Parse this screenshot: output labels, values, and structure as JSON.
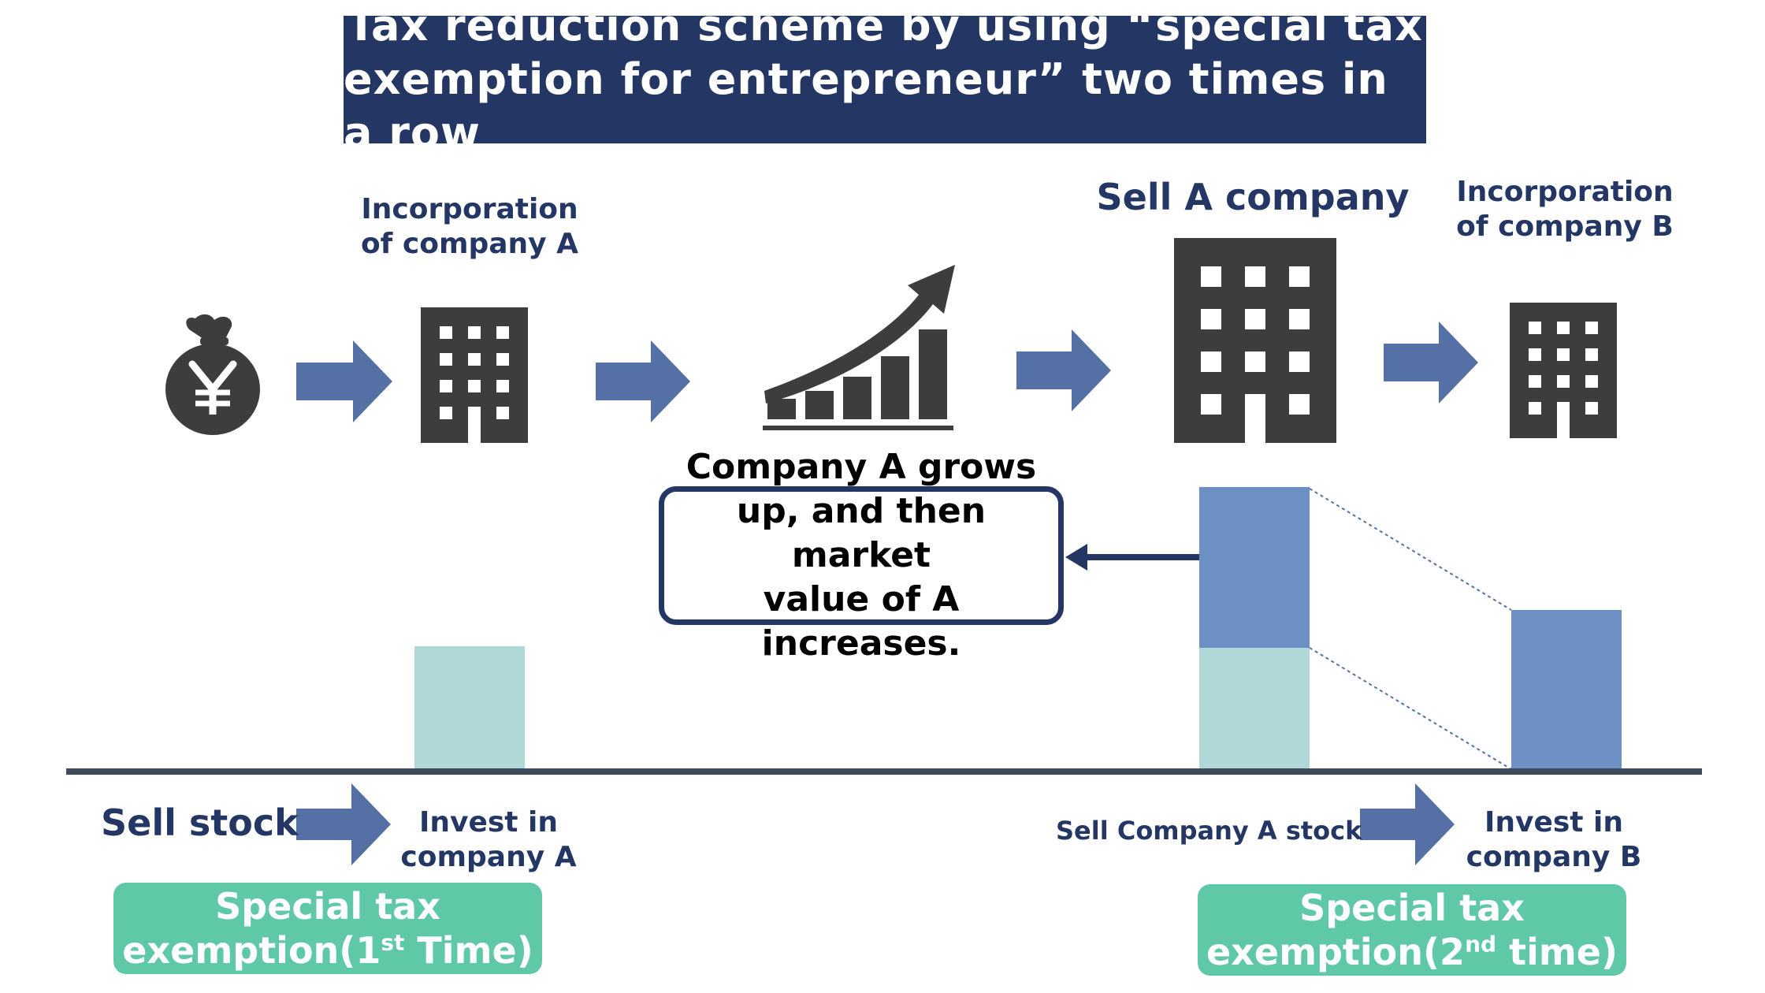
{
  "title": {
    "line1": "Tax reduction scheme by using “special tax",
    "line2": "exemption for entrepreneur” two times in a row"
  },
  "labels": {
    "incorporation_a_line1": "Incorporation",
    "incorporation_a_line2": "of company A",
    "sell_a_company": "Sell A company",
    "incorporation_b_line1": "Incorporation",
    "incorporation_b_line2": "of company B",
    "sell_stock": "Sell stock",
    "invest_a_line1": "Invest in",
    "invest_a_line2": "company A",
    "sell_company_a_stock": "Sell Company A stock",
    "invest_b_line1": "Invest in",
    "invest_b_line2": "company B"
  },
  "callout": {
    "line1": "Company A grows",
    "line2": "up, and then market",
    "line3": "value of A increases."
  },
  "badges": {
    "first": {
      "line1": "Special tax",
      "line2_prefix": "exemption(1",
      "line2_sup": "st",
      "line2_suffix": " Time)"
    },
    "second": {
      "line1": "Special tax",
      "line2_prefix": "exemption(2",
      "line2_sup": "nd",
      "line2_suffix": " time)"
    }
  },
  "icons": [
    "yen-money-bag-icon",
    "building-icon",
    "growth-chart-icon",
    "arrow-right-icon"
  ],
  "colors": {
    "navy": "#243764",
    "arrow": "#5470a5",
    "dark_gray": "#3d3d3d",
    "teal_bar": "#b0d8d6",
    "blue_bar": "#6c90c4",
    "badge_green": "#5ec8a7"
  }
}
